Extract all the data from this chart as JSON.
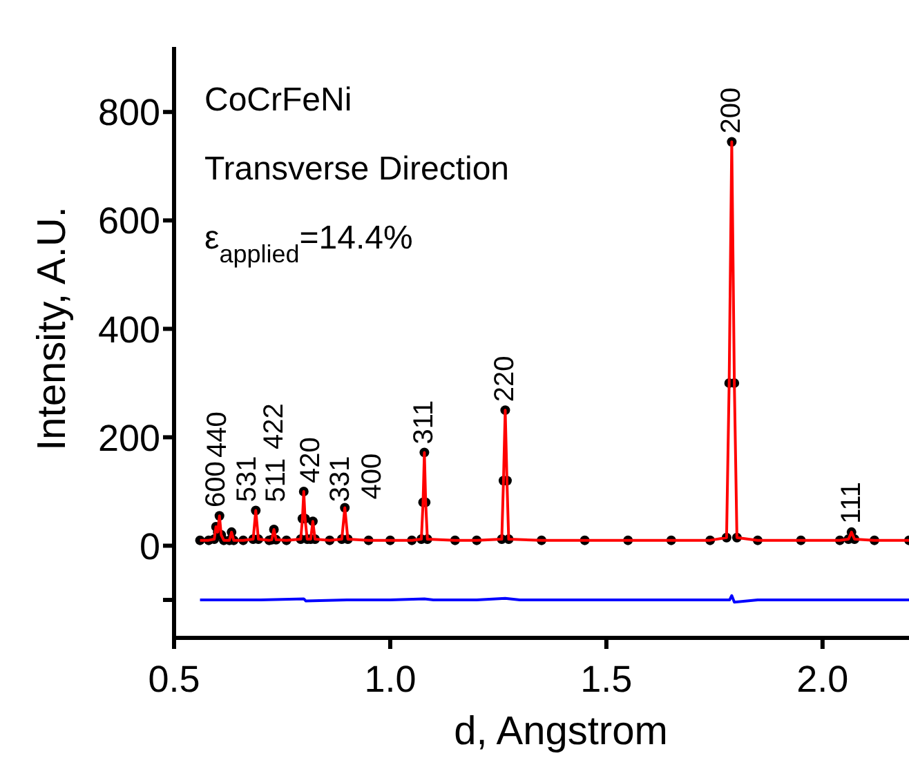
{
  "chart_data": {
    "type": "line",
    "xlabel": "d, Angstrom",
    "ylabel": "Intensity, A.U.",
    "xlim": [
      0.5,
      2.2
    ],
    "ylim": [
      -170,
      920
    ],
    "xticks": [
      0.5,
      {
        "value": 1,
        "label": "1.0"
      },
      1.5,
      {
        "value": 2,
        "label": "2.0"
      }
    ],
    "yticks": [
      {
        "value": -100,
        "label": null
      },
      0,
      200,
      400,
      600,
      800
    ],
    "series": [
      {
        "type": "scatter",
        "color": "#000000",
        "marker": "circle",
        "x": [
          0.56,
          0.58,
          0.593,
          0.597,
          0.601,
          0.605,
          0.609,
          0.615,
          0.628,
          0.633,
          0.638,
          0.66,
          0.683,
          0.689,
          0.695,
          0.72,
          0.726,
          0.731,
          0.736,
          0.76,
          0.793,
          0.797,
          0.8,
          0.803,
          0.808,
          0.816,
          0.821,
          0.826,
          0.86,
          0.888,
          0.895,
          0.902,
          0.95,
          1.0,
          1.05,
          1.072,
          1.076,
          1.079,
          1.082,
          1.086,
          1.15,
          1.2,
          1.258,
          1.262,
          1.266,
          1.27,
          1.274,
          1.35,
          1.45,
          1.55,
          1.65,
          1.74,
          1.778,
          1.784,
          1.79,
          1.796,
          1.802,
          1.85,
          1.95,
          2.04,
          2.06,
          2.067,
          2.074,
          2.12,
          2.2
        ],
        "values": [
          10,
          10,
          12,
          35,
          25,
          55,
          20,
          10,
          10,
          25,
          10,
          10,
          12,
          65,
          12,
          10,
          11,
          30,
          11,
          10,
          12,
          50,
          100,
          50,
          12,
          12,
          45,
          12,
          10,
          12,
          70,
          12,
          10,
          10,
          10,
          12,
          80,
          172,
          80,
          12,
          10,
          10,
          12,
          120,
          250,
          120,
          12,
          10,
          10,
          10,
          10,
          10,
          15,
          300,
          745,
          300,
          15,
          10,
          10,
          10,
          12,
          25,
          12,
          10,
          10
        ]
      },
      {
        "type": "line",
        "color": "#ff0000",
        "marker": "none",
        "line_style": "solid",
        "x": [
          0.56,
          0.58,
          0.593,
          0.597,
          0.601,
          0.605,
          0.609,
          0.615,
          0.628,
          0.633,
          0.638,
          0.66,
          0.683,
          0.689,
          0.695,
          0.72,
          0.726,
          0.731,
          0.736,
          0.76,
          0.793,
          0.797,
          0.8,
          0.803,
          0.808,
          0.816,
          0.821,
          0.826,
          0.86,
          0.888,
          0.895,
          0.902,
          0.95,
          1.0,
          1.05,
          1.072,
          1.076,
          1.079,
          1.082,
          1.086,
          1.15,
          1.2,
          1.258,
          1.262,
          1.266,
          1.27,
          1.274,
          1.35,
          1.45,
          1.55,
          1.65,
          1.74,
          1.778,
          1.784,
          1.79,
          1.796,
          1.802,
          1.85,
          1.95,
          2.04,
          2.06,
          2.067,
          2.074,
          2.12,
          2.2
        ],
        "values": [
          10,
          10,
          12,
          35,
          25,
          55,
          20,
          10,
          10,
          25,
          10,
          10,
          12,
          65,
          12,
          10,
          11,
          30,
          11,
          10,
          12,
          50,
          100,
          50,
          12,
          12,
          45,
          12,
          10,
          12,
          70,
          12,
          10,
          10,
          10,
          12,
          80,
          172,
          80,
          12,
          10,
          10,
          12,
          120,
          250,
          120,
          12,
          10,
          10,
          10,
          10,
          10,
          15,
          300,
          745,
          300,
          15,
          10,
          10,
          10,
          12,
          25,
          12,
          10,
          10
        ]
      },
      {
        "type": "line",
        "color": "#0000ff",
        "marker": "none",
        "line_style": "solid",
        "x": [
          0.56,
          0.6,
          0.7,
          0.8,
          0.805,
          0.9,
          1.0,
          1.079,
          1.1,
          1.2,
          1.266,
          1.3,
          1.5,
          1.7,
          1.785,
          1.79,
          1.796,
          1.85,
          2.0,
          2.2
        ],
        "values": [
          -100,
          -100,
          -100,
          -98,
          -102,
          -100,
          -100,
          -98,
          -100,
          -100,
          -97,
          -100,
          -100,
          -100,
          -100,
          -92,
          -104,
          -100,
          -100,
          -100
        ]
      }
    ],
    "annotations": [
      "CoCrFeNi",
      "Transverse Direction",
      "ε$_{applied}$=14.4%",
      {
        "text": "600",
        "x": 0.597,
        "y": 35
      },
      {
        "text": "531",
        "x": 0.605,
        "y": 55
      },
      {
        "text": "440",
        "x": 0.633,
        "y": 25
      },
      {
        "text": "511",
        "x": 0.689,
        "y": 65
      },
      {
        "text": "422",
        "x": 0.731,
        "y": 30
      },
      {
        "text": "420",
        "x": 0.8,
        "y": 100
      },
      {
        "text": "331",
        "x": 0.821,
        "y": 45
      },
      {
        "text": "400",
        "x": 0.895,
        "y": 70
      },
      {
        "text": "311",
        "x": 1.079,
        "y": 172
      },
      {
        "text": "220",
        "x": 1.266,
        "y": 250
      },
      {
        "text": "200",
        "x": 1.79,
        "y": 745
      },
      {
        "text": "111",
        "x": 2.067,
        "y": 25
      }
    ]
  }
}
